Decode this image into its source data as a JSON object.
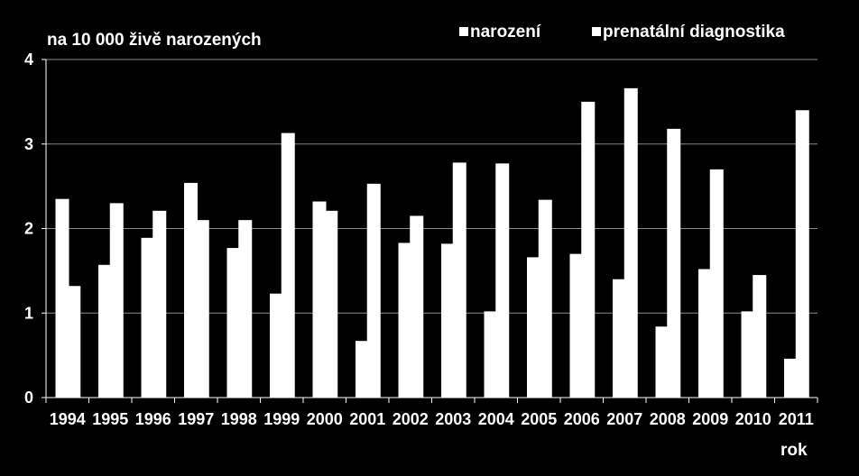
{
  "chart_data": {
    "type": "bar",
    "ylabel": "na 10 000 živě narozených",
    "xlabel": "rok",
    "ylim": [
      0,
      4
    ],
    "yticks": [
      "0",
      "1",
      "2",
      "3",
      "4"
    ],
    "grid": true,
    "legend_position": "top-right",
    "categories": [
      "1994",
      "1995",
      "1996",
      "1997",
      "1998",
      "1999",
      "2000",
      "2001",
      "2002",
      "2003",
      "2004",
      "2005",
      "2006",
      "2007",
      "2008",
      "2009",
      "2010",
      "2011"
    ],
    "series": [
      {
        "name": "narození",
        "color": "#ffffff",
        "values": [
          2.35,
          1.57,
          1.89,
          2.54,
          1.77,
          1.23,
          2.32,
          0.67,
          1.83,
          1.82,
          1.02,
          1.66,
          1.7,
          1.4,
          0.84,
          1.52,
          1.02,
          0.46
        ]
      },
      {
        "name": "prenatální diagnostika",
        "color": "#ffffff",
        "values": [
          1.32,
          2.3,
          2.21,
          2.1,
          2.1,
          3.13,
          2.21,
          2.53,
          2.15,
          2.78,
          2.77,
          2.34,
          3.5,
          3.66,
          3.18,
          2.7,
          1.45,
          3.4
        ]
      }
    ]
  }
}
